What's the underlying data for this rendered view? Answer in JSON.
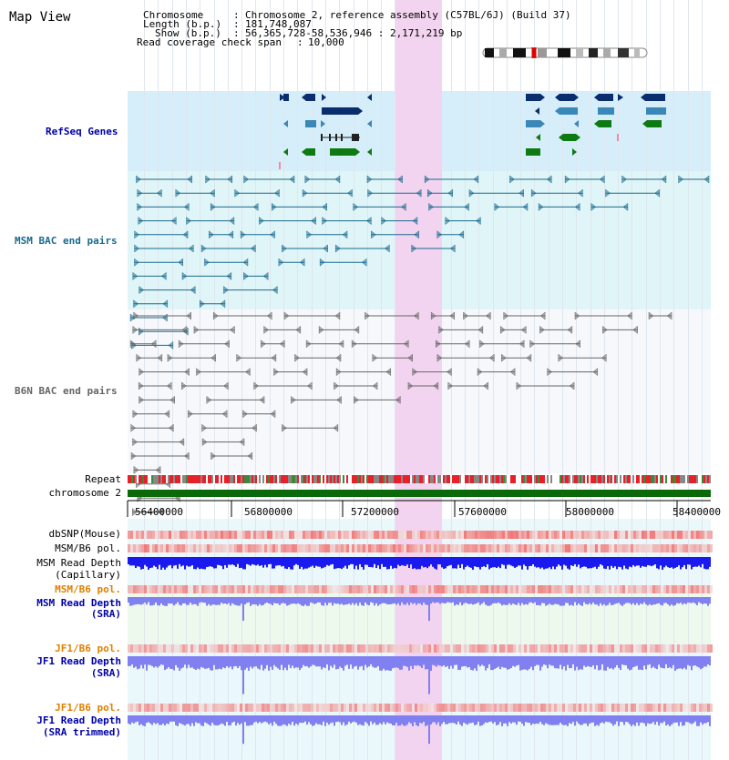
{
  "app": {
    "title": "Map View"
  },
  "header": {
    "chromosome_label": "Chromosome",
    "chromosome_value": "Chromosome 2, reference assembly (C57BL/6J) (Build 37)",
    "length_label": "Length (b.p.)",
    "length_value": "181,748,087",
    "show_label": "Show (b.p.)",
    "show_value": "56,365,728-58,536,946 : 2,171,219 bp",
    "coverage_label": "Read coverage check span",
    "coverage_value": "10,000"
  },
  "tracks": {
    "refseq": "RefSeq Genes",
    "msm_bac": "MSM BAC end pairs",
    "b6n_bac": "B6N BAC end pairs",
    "repeat": "Repeat",
    "chromosome": "chromosome 2",
    "dbsnp": "dbSNP(Mouse)",
    "msm_b6_pol": "MSM/B6 pol.",
    "msm_depth_cap_1": "MSM Read Depth",
    "msm_depth_cap_2": "(Capillary)",
    "msm_b6_pol_2": "MSM/B6 pol.",
    "msm_depth_sra_1": "MSM Read Depth",
    "msm_depth_sra_2": "(SRA)",
    "jf1_b6_pol": "JF1/B6 pol.",
    "jf1_depth_sra_1": "JF1 Read Depth",
    "jf1_depth_sra_2": "(SRA)",
    "jf1_b6_pol_2": "JF1/B6 pol.",
    "jf1_depth_trim_1": "JF1 Read Depth",
    "jf1_depth_trim_2": "(SRA trimmed)"
  },
  "axis": {
    "ticks": [
      "56400000",
      "56800000",
      "57200000",
      "57600000",
      "58000000",
      "58400000"
    ]
  },
  "colors": {
    "refseq_bg": "#d6eef9",
    "msm_bg": "#e0f5f7",
    "gene_dark": "#0a2d6e",
    "gene_mid": "#3a88b8",
    "gene_green": "#0e7a12",
    "msm_bac": "#1a6a8e",
    "b6n_bac": "#666666",
    "chromosome": "#0a6a0a",
    "highlight": "#f3d4f0",
    "label_blue": "#0000aa",
    "label_orange": "#e08000",
    "label_teal": "#1a6a8e",
    "depth_blue": "#1a1aee",
    "depth_light": "#8080f0"
  }
}
